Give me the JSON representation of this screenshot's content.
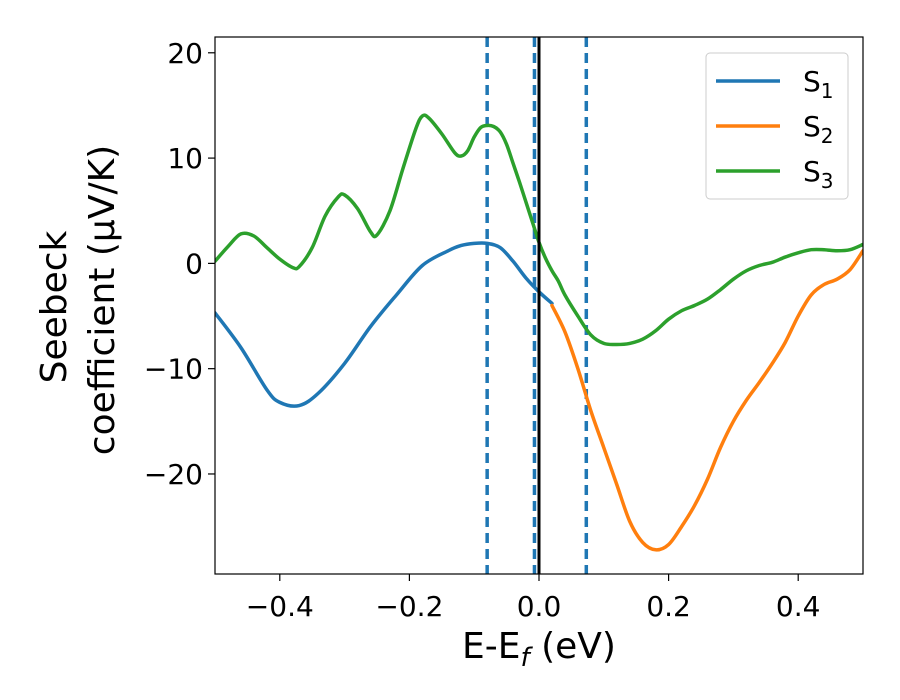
{
  "chart_data": {
    "type": "line",
    "xlabel": "E-E",
    "xlabel_sub": "f",
    "xlabel_unit": " (eV)",
    "ylabel_line1": "Seebeck",
    "ylabel_line2": "coefficient  (μV/K)",
    "xlim": [
      -0.5,
      0.5
    ],
    "ylim": [
      -29.5,
      21.5
    ],
    "x_ticks": [
      -0.4,
      -0.2,
      0.0,
      0.2,
      0.4
    ],
    "x_tick_labels": [
      "−0.4",
      "−0.2",
      "0.0",
      "0.2",
      "0.4"
    ],
    "y_ticks": [
      -20,
      -10,
      0,
      10,
      20
    ],
    "y_tick_labels": [
      "−20",
      "−10",
      "0",
      "10",
      "20"
    ],
    "grid": false,
    "legend_position": "top-right",
    "vertical_lines": [
      {
        "x": -0.08,
        "style": "dashed",
        "color": "#1f77b4"
      },
      {
        "x": -0.007,
        "style": "dashed",
        "color": "#1f77b4"
      },
      {
        "x": 0.073,
        "style": "dashed",
        "color": "#1f77b4"
      },
      {
        "x": 0.0,
        "style": "solid",
        "color": "#000000"
      }
    ],
    "series": [
      {
        "name": "S",
        "sub": "1",
        "color": "#1f77b4",
        "x": [
          -0.5,
          -0.46,
          -0.42,
          -0.4,
          -0.37,
          -0.34,
          -0.3,
          -0.26,
          -0.22,
          -0.18,
          -0.14,
          -0.12,
          -0.1,
          -0.08,
          -0.06,
          -0.04,
          -0.02,
          0.0,
          0.02
        ],
        "y": [
          -4.7,
          -8.0,
          -12.0,
          -13.2,
          -13.5,
          -12.3,
          -9.5,
          -6.0,
          -3.0,
          -0.2,
          1.2,
          1.7,
          1.9,
          1.9,
          1.5,
          0.2,
          -1.4,
          -2.7,
          -3.8
        ]
      },
      {
        "name": "S",
        "sub": "2",
        "color": "#ff7f0e",
        "x": [
          0.02,
          0.04,
          0.06,
          0.08,
          0.1,
          0.12,
          0.14,
          0.16,
          0.18,
          0.2,
          0.22,
          0.24,
          0.26,
          0.28,
          0.3,
          0.32,
          0.34,
          0.36,
          0.38,
          0.4,
          0.42,
          0.44,
          0.46,
          0.48,
          0.5
        ],
        "y": [
          -4.0,
          -6.5,
          -10.0,
          -14.0,
          -17.5,
          -21.0,
          -24.5,
          -26.5,
          -27.2,
          -26.7,
          -25.0,
          -23.0,
          -20.5,
          -17.5,
          -15.0,
          -13.0,
          -11.3,
          -9.5,
          -7.5,
          -5.0,
          -3.0,
          -2.0,
          -1.5,
          -0.6,
          1.2
        ]
      },
      {
        "name": "S",
        "sub": "3",
        "color": "#2ca02c",
        "x": [
          -0.5,
          -0.48,
          -0.46,
          -0.44,
          -0.42,
          -0.4,
          -0.38,
          -0.37,
          -0.35,
          -0.33,
          -0.31,
          -0.3,
          -0.28,
          -0.26,
          -0.25,
          -0.23,
          -0.21,
          -0.19,
          -0.18,
          -0.17,
          -0.15,
          -0.13,
          -0.12,
          -0.11,
          -0.1,
          -0.09,
          -0.08,
          -0.07,
          -0.06,
          -0.05,
          -0.04,
          -0.03,
          -0.02,
          -0.01,
          0.0,
          0.01,
          0.02,
          0.03,
          0.04,
          0.06,
          0.08,
          0.1,
          0.12,
          0.14,
          0.16,
          0.18,
          0.2,
          0.22,
          0.24,
          0.26,
          0.28,
          0.3,
          0.32,
          0.34,
          0.36,
          0.38,
          0.4,
          0.42,
          0.44,
          0.46,
          0.48,
          0.5
        ],
        "y": [
          0.2,
          1.6,
          2.8,
          2.6,
          1.5,
          0.4,
          -0.4,
          -0.3,
          1.5,
          4.5,
          6.3,
          6.5,
          5.2,
          3.0,
          2.7,
          5.0,
          9.0,
          12.8,
          14.0,
          13.8,
          12.3,
          10.5,
          10.2,
          10.7,
          12.0,
          12.9,
          13.1,
          13.0,
          12.5,
          11.3,
          9.5,
          7.7,
          5.8,
          3.9,
          2.0,
          0.5,
          -0.7,
          -1.7,
          -3.0,
          -5.0,
          -6.8,
          -7.6,
          -7.7,
          -7.6,
          -7.2,
          -6.4,
          -5.3,
          -4.5,
          -4.0,
          -3.4,
          -2.5,
          -1.5,
          -0.7,
          -0.2,
          0.1,
          0.6,
          1.0,
          1.3,
          1.3,
          1.2,
          1.3,
          1.8
        ]
      }
    ]
  }
}
